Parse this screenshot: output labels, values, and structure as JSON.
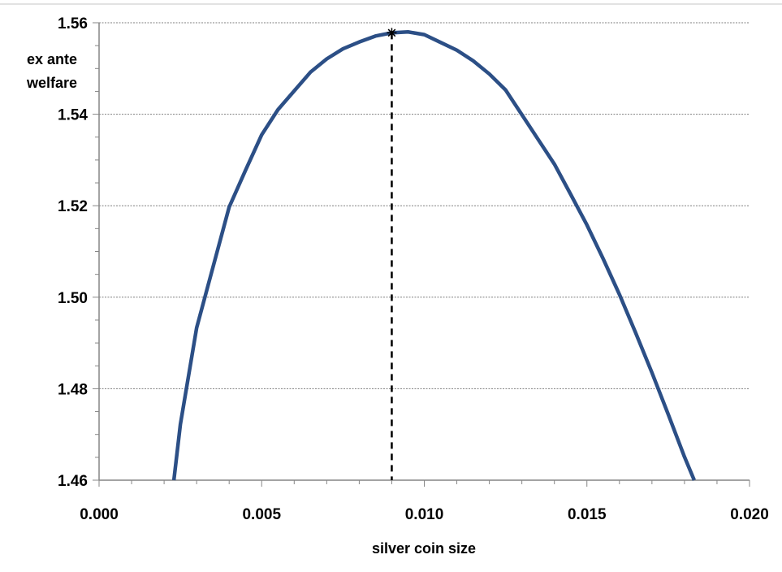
{
  "chart_data": {
    "type": "line",
    "title": "",
    "xlabel": "silver coin size",
    "ylabel": [
      "ex ante",
      "welfare"
    ],
    "xlim": [
      0.0,
      0.02
    ],
    "ylim": [
      1.46,
      1.56
    ],
    "x_ticks": [
      0.0,
      0.005,
      0.01,
      0.015,
      0.02
    ],
    "x_tick_labels": [
      "0.000",
      "0.005",
      "0.010",
      "0.015",
      "0.020"
    ],
    "x_minor_step": 0.001,
    "y_ticks": [
      1.46,
      1.48,
      1.5,
      1.52,
      1.54,
      1.56
    ],
    "y_tick_labels": [
      "1.46",
      "1.48",
      "1.50",
      "1.52",
      "1.54",
      "1.56"
    ],
    "y_minor_step": 0.005,
    "grid": "horizontal dashed",
    "legend": "none",
    "series": [
      {
        "color": "#2c4f86",
        "x": [
          0.0023,
          0.0025,
          0.003,
          0.0035,
          0.004,
          0.0045,
          0.005,
          0.0055,
          0.006,
          0.0065,
          0.007,
          0.0075,
          0.008,
          0.0085,
          0.009,
          0.0095,
          0.01,
          0.0105,
          0.011,
          0.0115,
          0.012,
          0.0125,
          0.013,
          0.0135,
          0.014,
          0.0145,
          0.015,
          0.0155,
          0.016,
          0.0165,
          0.017,
          0.0175,
          0.018,
          0.0183
        ],
        "y": [
          1.46,
          1.4722,
          1.4933,
          1.5065,
          1.5197,
          1.5277,
          1.5355,
          1.541,
          1.5451,
          1.5492,
          1.5521,
          1.5543,
          1.5558,
          1.5571,
          1.5578,
          1.558,
          1.5574,
          1.5557,
          1.554,
          1.5517,
          1.5488,
          1.5453,
          1.5399,
          1.5345,
          1.5291,
          1.5225,
          1.5158,
          1.5084,
          1.5006,
          1.4922,
          1.4835,
          1.4744,
          1.4651,
          1.46
        ]
      }
    ],
    "annotations": {
      "optimum_marker": {
        "x": 0.009,
        "y": 1.5578,
        "style": "asterisk"
      },
      "optimum_dropline": {
        "x": 0.009,
        "style": "dashed vertical to x-axis"
      }
    }
  }
}
